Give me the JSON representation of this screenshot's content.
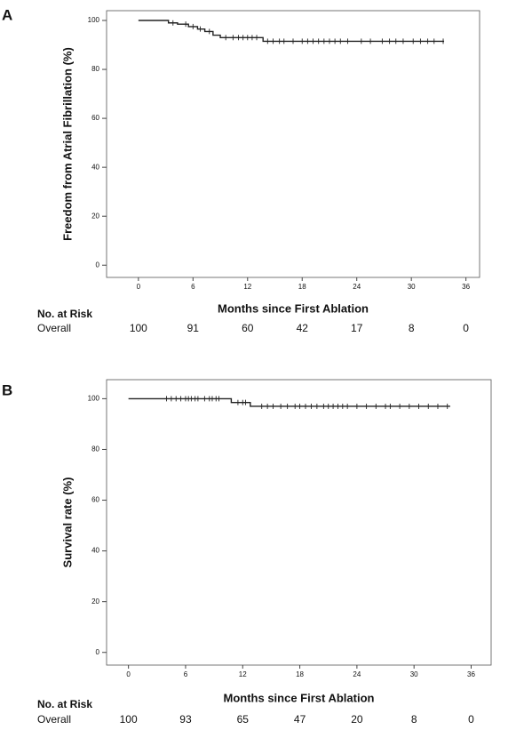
{
  "chart_data": [
    {
      "type": "line",
      "panel": "A",
      "ylabel": "Freedom from Atrial Fibrillation (%)",
      "xlabel": "Months since First Ablation",
      "x": [
        0,
        3.3,
        4.3,
        5.5,
        6.5,
        7.3,
        8.2,
        9.0,
        13.7,
        33.6
      ],
      "values": [
        100,
        99,
        98.5,
        97.5,
        96.5,
        95.5,
        94,
        93,
        91.5,
        91.5
      ],
      "censored": {
        "x": [
          3.8,
          5.2,
          6.0,
          6.8,
          7.8,
          9.6,
          10.4,
          11,
          11.5,
          12,
          12.5,
          13,
          14.2,
          14.8,
          15.5,
          16,
          17,
          18,
          18.6,
          19.2,
          19.8,
          20.4,
          21,
          21.6,
          22.2,
          23,
          24.5,
          25.5,
          26.8,
          27.6,
          28.3,
          29.1,
          30.2,
          31,
          31.8,
          32.5,
          33.5
        ],
        "values": [
          99,
          98.5,
          97.5,
          96.5,
          95.5,
          93,
          93,
          93,
          93,
          93,
          93,
          93,
          91.5,
          91.5,
          91.5,
          91.5,
          91.5,
          91.5,
          91.5,
          91.5,
          91.5,
          91.5,
          91.5,
          91.5,
          91.5,
          91.5,
          91.5,
          91.5,
          91.5,
          91.5,
          91.5,
          91.5,
          91.5,
          91.5,
          91.5,
          91.5,
          91.5
        ]
      },
      "color": "#222222",
      "xlim": [
        -3.5,
        37.5
      ],
      "xticks": [
        0,
        6,
        12,
        18,
        24,
        30,
        36
      ],
      "ylim": [
        -5,
        104
      ],
      "yticks": [
        0,
        20,
        40,
        60,
        80,
        100
      ],
      "risk_table": {
        "title": "No. at Risk",
        "label": "Overall",
        "values": [
          100,
          91,
          60,
          42,
          17,
          8,
          0
        ]
      }
    },
    {
      "type": "line",
      "panel": "B",
      "ylabel": "Survival rate (%)",
      "xlabel": "Months since First Ablation",
      "x": [
        0,
        10.8,
        12.8,
        33.8
      ],
      "values": [
        100,
        98.5,
        97,
        97
      ],
      "censored": {
        "x": [
          4,
          4.5,
          5,
          5.5,
          6,
          6.3,
          6.6,
          7,
          7.3,
          8,
          8.5,
          8.8,
          9.2,
          9.5,
          11.5,
          12,
          12.3,
          14,
          14.6,
          15.2,
          16,
          16.7,
          17.5,
          18,
          18.6,
          19.2,
          19.8,
          20.5,
          21,
          21.5,
          22,
          22.5,
          23,
          24,
          25,
          26,
          27,
          27.5,
          28.5,
          29.5,
          30.5,
          31.5,
          32.5,
          33.5
        ],
        "values": [
          100,
          100,
          100,
          100,
          100,
          100,
          100,
          100,
          100,
          100,
          100,
          100,
          100,
          100,
          98.5,
          98.5,
          98.5,
          97,
          97,
          97,
          97,
          97,
          97,
          97,
          97,
          97,
          97,
          97,
          97,
          97,
          97,
          97,
          97,
          97,
          97,
          97,
          97,
          97,
          97,
          97,
          97,
          97,
          97,
          97
        ]
      },
      "color": "#222222",
      "xlim": [
        -2.3,
        38.1
      ],
      "xticks": [
        0,
        6,
        12,
        18,
        24,
        30,
        36
      ],
      "ylim": [
        -5,
        107.5
      ],
      "yticks": [
        0,
        20,
        40,
        60,
        80,
        100
      ],
      "risk_table": {
        "title": "No. at Risk",
        "label": "Overall",
        "values": [
          100,
          93,
          65,
          47,
          20,
          8,
          0
        ]
      }
    }
  ]
}
